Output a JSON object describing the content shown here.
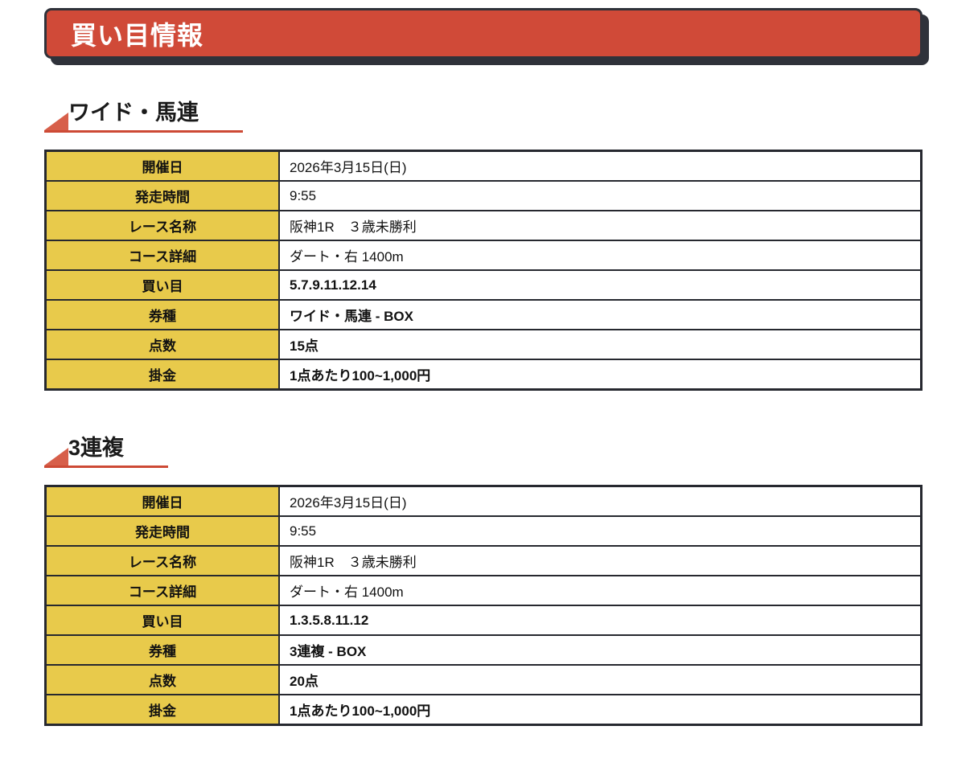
{
  "page": {
    "title_banner": "買い目情報"
  },
  "colors": {
    "banner_red": "#d04a38",
    "banner_shadow_dark": "#2f323a",
    "heading_underline_red": "#cd4a35",
    "triangle_red": "#d75f4a",
    "label_cell_yellow": "#e8ca4b",
    "table_border_dark": "#26282f"
  },
  "sections": [
    {
      "heading": "ワイド・馬連",
      "rows": [
        {
          "label": "開催日",
          "value": "2026年3月15日(日)"
        },
        {
          "label": "発走時間",
          "value": "9:55"
        },
        {
          "label": "レース名称",
          "value": "阪神1R　３歳未勝利"
        },
        {
          "label": "コース詳細",
          "value": "ダート・右 1400m"
        },
        {
          "label": "買い目",
          "value": "5.7.9.11.12.14"
        },
        {
          "label": "券種",
          "value": "ワイド・馬連 - BOX"
        },
        {
          "label": "点数",
          "value": "15点"
        },
        {
          "label": "掛金",
          "value": "1点あたり100~1,000円"
        }
      ]
    },
    {
      "heading": "3連複",
      "rows": [
        {
          "label": "開催日",
          "value": "2026年3月15日(日)"
        },
        {
          "label": "発走時間",
          "value": "9:55"
        },
        {
          "label": "レース名称",
          "value": "阪神1R　３歳未勝利"
        },
        {
          "label": "コース詳細",
          "value": "ダート・右 1400m"
        },
        {
          "label": "買い目",
          "value": "1.3.5.8.11.12"
        },
        {
          "label": "券種",
          "value": "3連複 - BOX"
        },
        {
          "label": "点数",
          "value": "20点"
        },
        {
          "label": "掛金",
          "value": "1点あたり100~1,000円"
        }
      ]
    }
  ]
}
